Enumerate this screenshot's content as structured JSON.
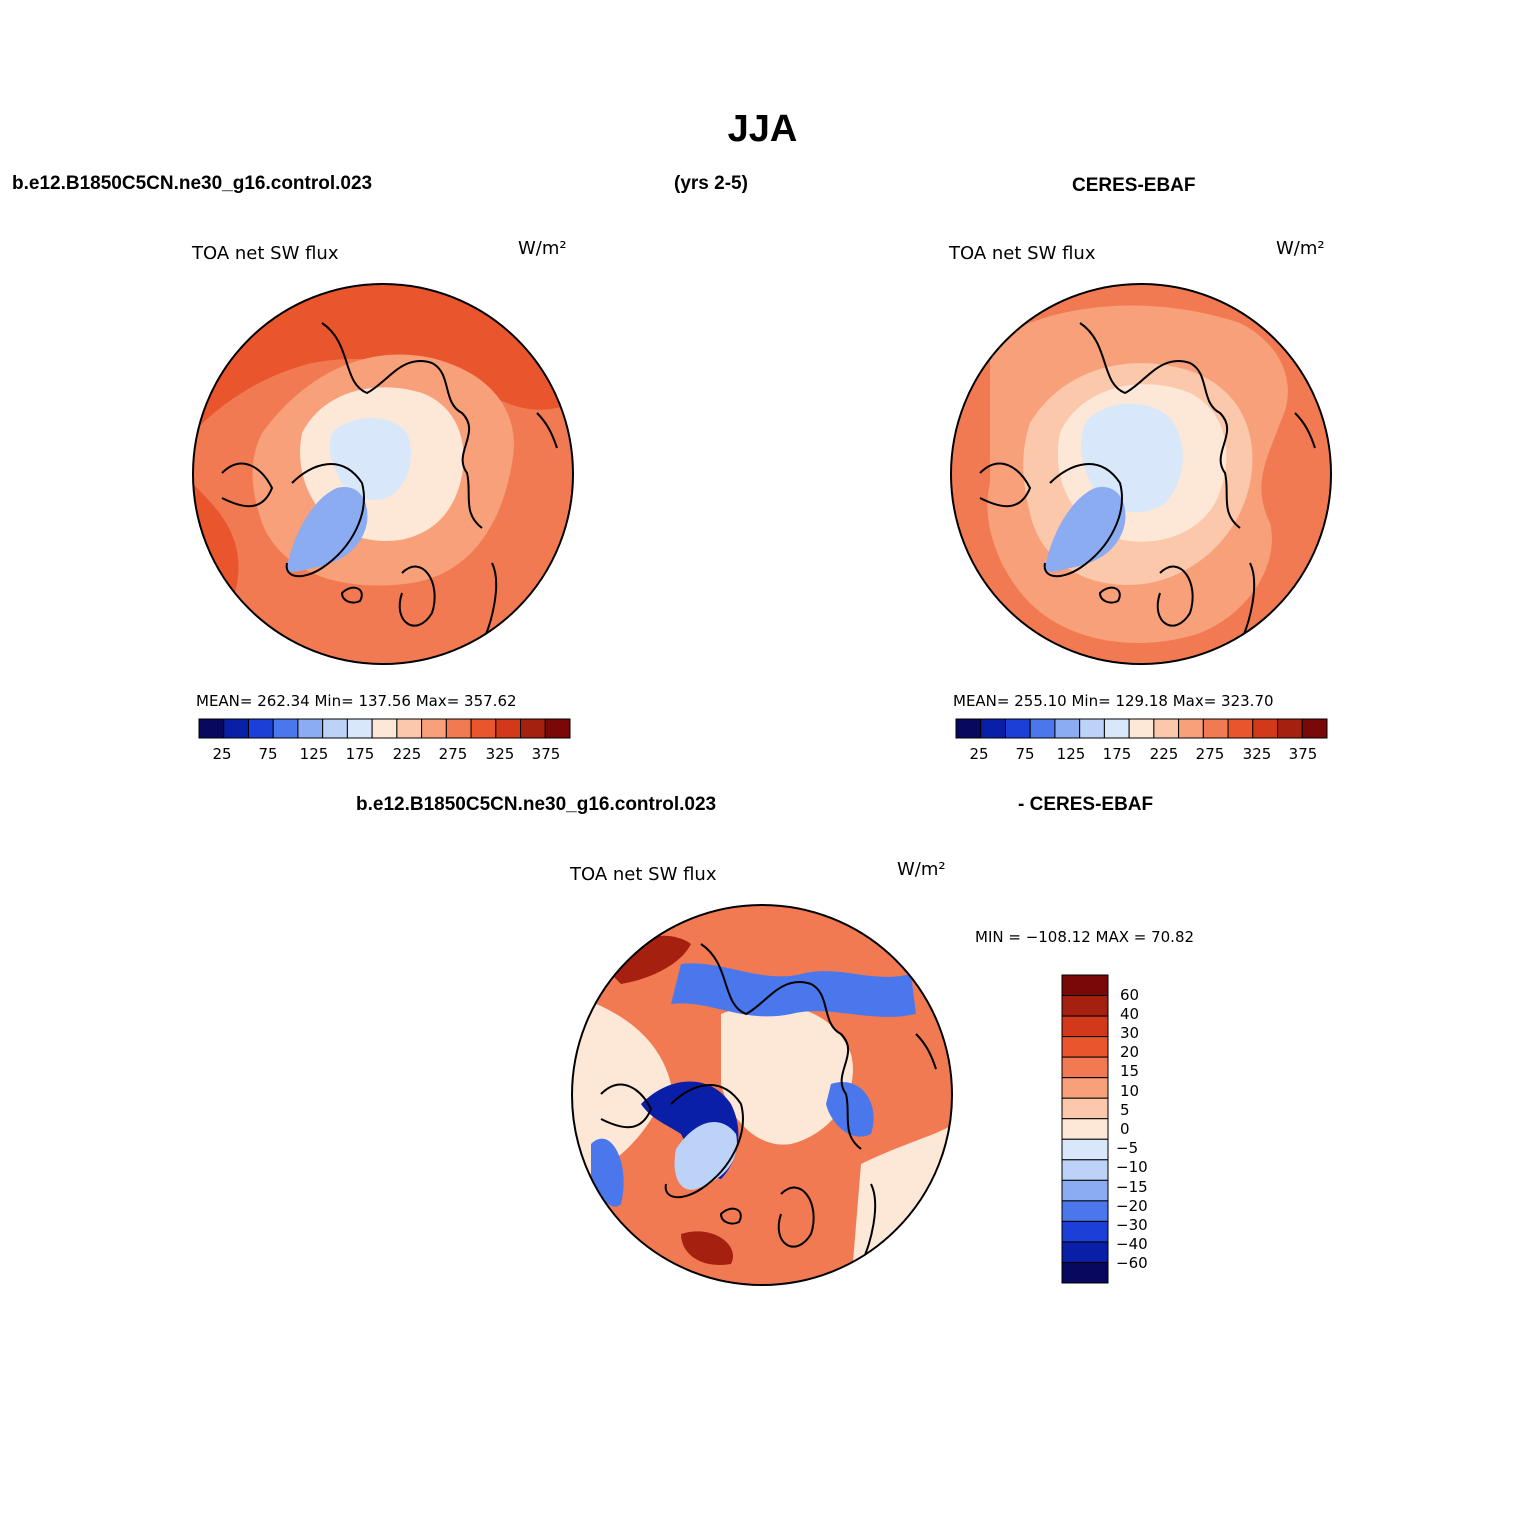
{
  "figure": {
    "title": "JJA",
    "case_label": "b.e12.B1850C5CN.ne30_g16.control.023",
    "years_label": "(yrs 2-5)",
    "obs_label": "CERES-EBAF",
    "diff_case_label": "b.e12.B1850C5CN.ne30_g16.control.023",
    "diff_obs_label": "- CERES-EBAF"
  },
  "panels": [
    {
      "id": "model",
      "title": "TOA net SW flux",
      "units": "W/m²",
      "stats_text": "MEAN= 262.34   Min= 137.56   Max= 357.62",
      "mean": 262.34,
      "min": 137.56,
      "max": 357.62
    },
    {
      "id": "obs",
      "title": "TOA net SW flux",
      "units": "W/m²",
      "stats_text": "MEAN= 255.10   Min= 129.18   Max= 323.70",
      "mean": 255.1,
      "min": 129.18,
      "max": 323.7
    },
    {
      "id": "difference",
      "title": "TOA net SW flux",
      "units": "W/m²",
      "stats_text": "MIN = −108.12 MAX =   70.82",
      "min": -108.12,
      "max": 70.82
    }
  ],
  "abs_colorbar": {
    "labels": [
      "25",
      "75",
      "125",
      "175",
      "225",
      "275",
      "325",
      "375"
    ],
    "colors": [
      "#08085f",
      "#0a1fa8",
      "#1c3fd8",
      "#4a78ec",
      "#8cacf2",
      "#bcd2f6",
      "#d8e8fa",
      "#fde8d8",
      "#fbc8ab",
      "#f7a07a",
      "#f17a52",
      "#e9552d",
      "#d2381a",
      "#a62010",
      "#7a0808"
    ]
  },
  "diff_colorbar": {
    "labels": [
      "60",
      "40",
      "30",
      "20",
      "15",
      "10",
      "5",
      "0",
      "−5",
      "−10",
      "−15",
      "−20",
      "−30",
      "−40",
      "−60"
    ],
    "colors": [
      "#7a0808",
      "#a62010",
      "#d2381a",
      "#e9552d",
      "#f17a52",
      "#f7a07a",
      "#fbc8ab",
      "#fde8d8",
      "#d8e8fa",
      "#bcd2f6",
      "#8cacf2",
      "#4a78ec",
      "#1c3fd8",
      "#0a1fa8",
      "#08085f"
    ]
  },
  "map_fields": {
    "model": {
      "background": "#f17a52",
      "regions": [
        {
          "category": "ocean-high",
          "color": "#e9552d"
        },
        {
          "category": "land-mid",
          "color": "#f7a07a"
        },
        {
          "category": "arctic-ocean",
          "color": "#fde8d8"
        },
        {
          "category": "central-arctic",
          "color": "#d8e8fa"
        },
        {
          "category": "greenland",
          "color": "#8cacf2"
        }
      ]
    },
    "obs": {
      "background": "#f17a52",
      "regions": [
        {
          "category": "ocean-mid",
          "color": "#f7a07a"
        },
        {
          "category": "arctic-ocean",
          "color": "#fbc8ab"
        },
        {
          "category": "central-arctic",
          "color": "#fde8d8"
        },
        {
          "category": "pole",
          "color": "#d8e8fa"
        },
        {
          "category": "greenland",
          "color": "#8cacf2"
        }
      ]
    },
    "difference": {
      "background": "#f17a52",
      "regions": [
        {
          "category": "near-zero",
          "color": "#fde8d8"
        },
        {
          "category": "negative-band",
          "color": "#4a78ec"
        },
        {
          "category": "strong-negative",
          "color": "#0a1fa8"
        },
        {
          "category": "strong-positive",
          "color": "#a62010"
        },
        {
          "category": "mild-negative",
          "color": "#bcd2f6"
        }
      ]
    }
  }
}
